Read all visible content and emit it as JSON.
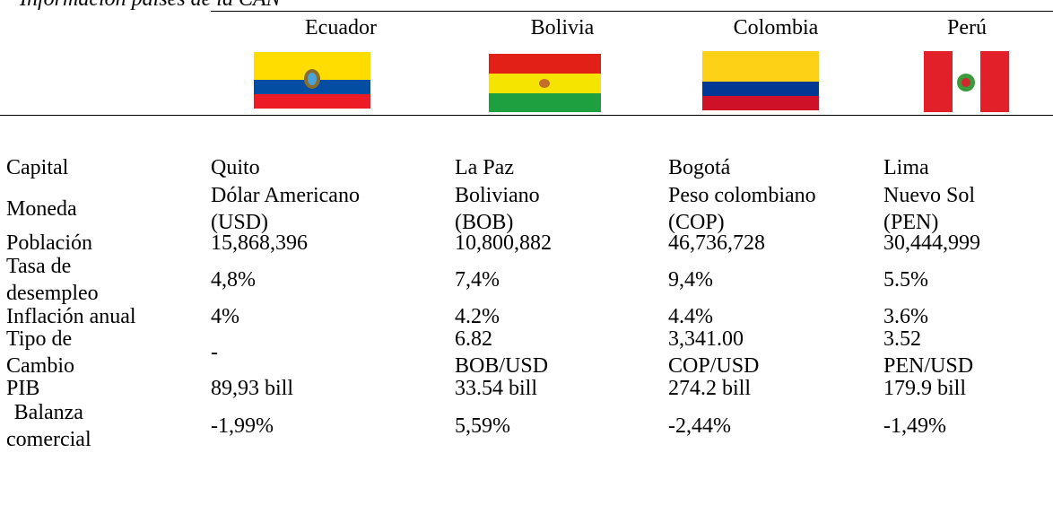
{
  "title": "Información países de la CAN",
  "table": {
    "header": [
      "Ecuador",
      "Bolivia",
      "Colombia",
      "Perú"
    ],
    "rows": [
      {
        "label": [
          "Capital"
        ],
        "values": [
          [
            "Quito"
          ],
          [
            "La Paz"
          ],
          [
            "Bogotá"
          ],
          [
            "Lima"
          ]
        ]
      },
      {
        "label": [
          "Moneda"
        ],
        "values": [
          [
            "Dólar Americano",
            "(USD)"
          ],
          [
            "Boliviano",
            "(BOB)"
          ],
          [
            "Peso colombiano",
            "(COP)"
          ],
          [
            "Nuevo Sol",
            "(PEN)"
          ]
        ]
      },
      {
        "label": [
          "Población"
        ],
        "values": [
          [
            "15,868,396"
          ],
          [
            "10,800,882"
          ],
          [
            "46,736,728"
          ],
          [
            "30,444,999"
          ]
        ]
      },
      {
        "label": [
          "Tasa de",
          "desempleo"
        ],
        "values": [
          [
            "4,8%"
          ],
          [
            "7,4%"
          ],
          [
            "9,4%"
          ],
          [
            "5.5%"
          ]
        ]
      },
      {
        "label": [
          "Inflación anual"
        ],
        "values": [
          [
            "4%"
          ],
          [
            "4.2%"
          ],
          [
            "4.4%"
          ],
          [
            "3.6%"
          ]
        ]
      },
      {
        "label": [
          "Tipo de",
          "Cambio"
        ],
        "values": [
          [
            "-"
          ],
          [
            "6.82",
            "BOB/USD"
          ],
          [
            "3,341.00",
            "COP/USD"
          ],
          [
            "3.52",
            "PEN/USD"
          ]
        ]
      },
      {
        "label": [
          "PIB"
        ],
        "values": [
          [
            "89,93 bill"
          ],
          [
            "33.54 bill"
          ],
          [
            "274.2 bill"
          ],
          [
            "179.9 bill"
          ]
        ]
      },
      {
        "label": [
          "Balanza",
          "comercial"
        ],
        "values": [
          [
            "-1,99%"
          ],
          [
            "5,59%"
          ],
          [
            "-2,44%"
          ],
          [
            "-1,49%"
          ]
        ]
      }
    ]
  }
}
